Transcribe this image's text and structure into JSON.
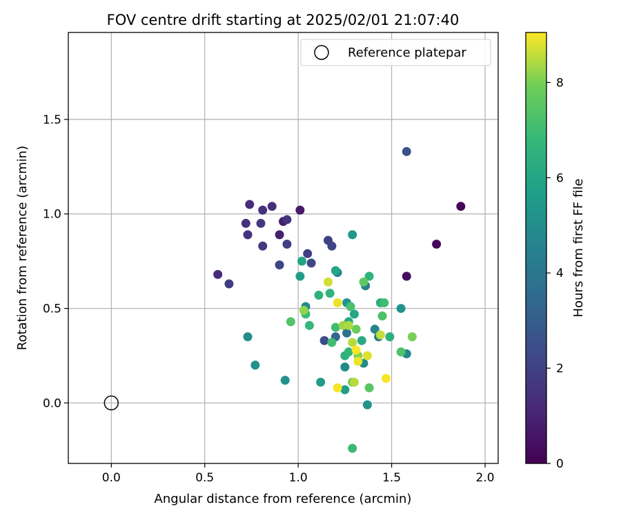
{
  "chart_data": {
    "type": "scatter",
    "title": "FOV centre drift starting at 2025/02/01 21:07:40",
    "xlabel": "Angular distance from reference (arcmin)",
    "ylabel": "Rotation from reference (arcmin)",
    "xlim": [
      -0.23,
      2.07
    ],
    "ylim": [
      -0.32,
      1.96
    ],
    "xticks": [
      0.0,
      0.5,
      1.0,
      1.5,
      2.0
    ],
    "xtick_labels": [
      "0.0",
      "0.5",
      "1.0",
      "1.5",
      "2.0"
    ],
    "yticks": [
      0.0,
      0.5,
      1.0,
      1.5
    ],
    "ytick_labels": [
      "0.0",
      "0.5",
      "1.0",
      "1.5"
    ],
    "grid": true,
    "legend": {
      "position": "top-right",
      "entries": [
        "Reference platepar"
      ]
    },
    "reference": {
      "x": 0.0,
      "y": 0.0,
      "marker": "open-circle",
      "label": "Reference platepar"
    },
    "colorbar": {
      "label": "Hours from first FF file",
      "colormap": "viridis",
      "range": [
        0,
        9.05
      ],
      "ticks": [
        0,
        2,
        4,
        6,
        8
      ],
      "tick_labels": [
        "0",
        "2",
        "4",
        "6",
        "8"
      ]
    },
    "points": [
      {
        "x": 1.87,
        "y": 1.04,
        "c": 0.1
      },
      {
        "x": 1.74,
        "y": 0.84,
        "c": 0.2
      },
      {
        "x": 1.58,
        "y": 0.67,
        "c": 0.4
      },
      {
        "x": 1.01,
        "y": 1.02,
        "c": 0.7
      },
      {
        "x": 0.92,
        "y": 0.96,
        "c": 0.8
      },
      {
        "x": 0.9,
        "y": 0.89,
        "c": 0.9
      },
      {
        "x": 0.57,
        "y": 0.68,
        "c": 1.2
      },
      {
        "x": 0.74,
        "y": 1.05,
        "c": 1.3
      },
      {
        "x": 0.72,
        "y": 0.95,
        "c": 1.4
      },
      {
        "x": 0.86,
        "y": 1.04,
        "c": 1.4
      },
      {
        "x": 0.73,
        "y": 0.89,
        "c": 1.5
      },
      {
        "x": 0.81,
        "y": 1.02,
        "c": 1.5
      },
      {
        "x": 0.94,
        "y": 0.97,
        "c": 1.5
      },
      {
        "x": 0.8,
        "y": 0.95,
        "c": 1.6
      },
      {
        "x": 0.81,
        "y": 0.83,
        "c": 1.7
      },
      {
        "x": 0.63,
        "y": 0.63,
        "c": 1.8
      },
      {
        "x": 0.94,
        "y": 0.84,
        "c": 1.9
      },
      {
        "x": 1.05,
        "y": 0.79,
        "c": 1.9
      },
      {
        "x": 1.16,
        "y": 0.86,
        "c": 2.0
      },
      {
        "x": 0.9,
        "y": 0.73,
        "c": 2.1
      },
      {
        "x": 1.18,
        "y": 0.83,
        "c": 2.1
      },
      {
        "x": 1.07,
        "y": 0.74,
        "c": 2.2
      },
      {
        "x": 1.14,
        "y": 0.33,
        "c": 2.4
      },
      {
        "x": 1.58,
        "y": 1.33,
        "c": 2.6
      },
      {
        "x": 1.2,
        "y": 0.35,
        "c": 3.5
      },
      {
        "x": 1.26,
        "y": 0.37,
        "c": 3.9
      },
      {
        "x": 1.43,
        "y": 0.35,
        "c": 4.2
      },
      {
        "x": 1.21,
        "y": 0.69,
        "c": 4.4
      },
      {
        "x": 1.36,
        "y": 0.62,
        "c": 4.5
      },
      {
        "x": 1.41,
        "y": 0.39,
        "c": 4.6
      },
      {
        "x": 1.58,
        "y": 0.26,
        "c": 4.7
      },
      {
        "x": 1.35,
        "y": 0.21,
        "c": 4.8
      },
      {
        "x": 1.04,
        "y": 0.51,
        "c": 4.8
      },
      {
        "x": 1.25,
        "y": 0.19,
        "c": 4.9
      },
      {
        "x": 0.73,
        "y": 0.35,
        "c": 5.0
      },
      {
        "x": 0.77,
        "y": 0.2,
        "c": 5.1
      },
      {
        "x": 0.93,
        "y": 0.12,
        "c": 5.1
      },
      {
        "x": 1.37,
        "y": -0.01,
        "c": 5.2
      },
      {
        "x": 1.55,
        "y": 0.5,
        "c": 5.2
      },
      {
        "x": 1.26,
        "y": 0.53,
        "c": 5.3
      },
      {
        "x": 1.29,
        "y": 0.89,
        "c": 5.4
      },
      {
        "x": 1.01,
        "y": 0.67,
        "c": 5.6
      },
      {
        "x": 1.12,
        "y": 0.11,
        "c": 5.6
      },
      {
        "x": 1.25,
        "y": 0.07,
        "c": 5.7
      },
      {
        "x": 1.02,
        "y": 0.75,
        "c": 5.9
      },
      {
        "x": 1.2,
        "y": 0.7,
        "c": 6.0
      },
      {
        "x": 1.3,
        "y": 0.47,
        "c": 6.0
      },
      {
        "x": 1.27,
        "y": 0.43,
        "c": 6.1
      },
      {
        "x": 1.34,
        "y": 0.33,
        "c": 6.2
      },
      {
        "x": 1.44,
        "y": 0.53,
        "c": 6.3
      },
      {
        "x": 1.49,
        "y": 0.35,
        "c": 6.4
      },
      {
        "x": 1.25,
        "y": 0.25,
        "c": 6.5
      },
      {
        "x": 1.11,
        "y": 0.57,
        "c": 6.5
      },
      {
        "x": 1.38,
        "y": 0.67,
        "c": 6.6
      },
      {
        "x": 1.17,
        "y": 0.58,
        "c": 6.6
      },
      {
        "x": 1.27,
        "y": 0.27,
        "c": 6.7
      },
      {
        "x": 1.06,
        "y": 0.41,
        "c": 6.8
      },
      {
        "x": 1.04,
        "y": 0.47,
        "c": 6.9
      },
      {
        "x": 1.29,
        "y": -0.24,
        "c": 6.9
      },
      {
        "x": 1.2,
        "y": 0.4,
        "c": 7.0
      },
      {
        "x": 1.46,
        "y": 0.53,
        "c": 7.0
      },
      {
        "x": 1.18,
        "y": 0.32,
        "c": 7.1
      },
      {
        "x": 1.28,
        "y": 0.51,
        "c": 7.2
      },
      {
        "x": 1.45,
        "y": 0.46,
        "c": 7.3
      },
      {
        "x": 1.55,
        "y": 0.27,
        "c": 7.3
      },
      {
        "x": 0.96,
        "y": 0.43,
        "c": 7.4
      },
      {
        "x": 1.38,
        "y": 0.08,
        "c": 7.5
      },
      {
        "x": 1.35,
        "y": 0.64,
        "c": 7.6
      },
      {
        "x": 1.29,
        "y": 0.11,
        "c": 7.7
      },
      {
        "x": 1.31,
        "y": 0.39,
        "c": 7.8
      },
      {
        "x": 1.61,
        "y": 0.35,
        "c": 8.0
      },
      {
        "x": 1.32,
        "y": 0.25,
        "c": 8.1
      },
      {
        "x": 1.03,
        "y": 0.49,
        "c": 8.2
      },
      {
        "x": 1.24,
        "y": 0.41,
        "c": 8.3
      },
      {
        "x": 1.27,
        "y": 0.41,
        "c": 8.4
      },
      {
        "x": 1.29,
        "y": 0.32,
        "c": 8.5
      },
      {
        "x": 1.3,
        "y": 0.11,
        "c": 8.5
      },
      {
        "x": 1.44,
        "y": 0.36,
        "c": 8.6
      },
      {
        "x": 1.16,
        "y": 0.64,
        "c": 8.7
      },
      {
        "x": 1.37,
        "y": 0.25,
        "c": 8.8
      },
      {
        "x": 1.21,
        "y": 0.53,
        "c": 8.9
      },
      {
        "x": 1.32,
        "y": 0.22,
        "c": 8.9
      },
      {
        "x": 1.47,
        "y": 0.13,
        "c": 9.0
      },
      {
        "x": 1.21,
        "y": 0.08,
        "c": 9.0
      },
      {
        "x": 1.31,
        "y": 0.28,
        "c": 9.0
      }
    ]
  }
}
